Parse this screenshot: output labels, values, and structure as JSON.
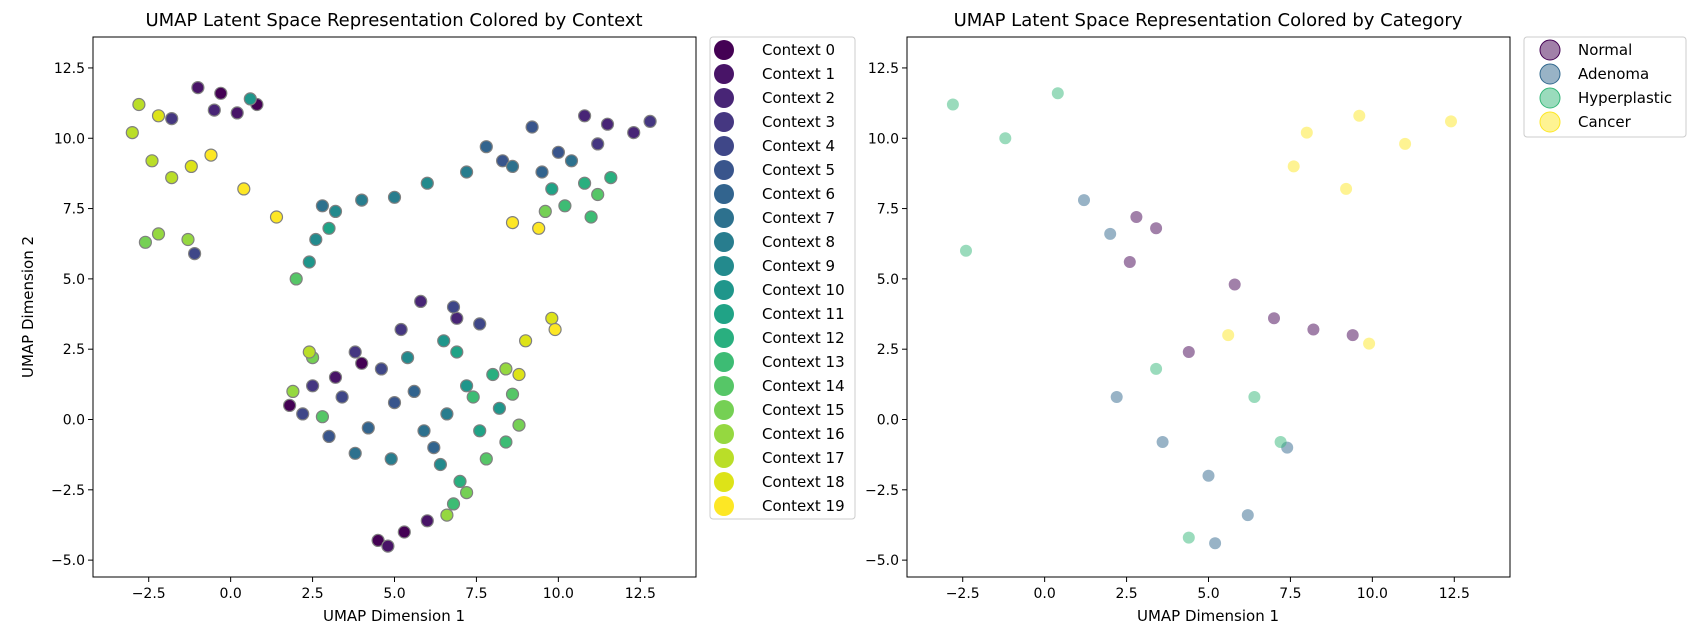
{
  "chart_data": [
    {
      "type": "scatter",
      "title": "UMAP Latent Space Representation Colored by Context",
      "xlabel": "UMAP Dimension 1",
      "ylabel": "UMAP Dimension 2",
      "xlim": [
        -4.2,
        14.2
      ],
      "ylim": [
        -5.6,
        13.6
      ],
      "xticks": [
        -2.5,
        0.0,
        2.5,
        5.0,
        7.5,
        10.0,
        12.5
      ],
      "xtick_labels": [
        "−2.5",
        "0.0",
        "2.5",
        "5.0",
        "7.5",
        "10.0",
        "12.5"
      ],
      "yticks": [
        -5.0,
        -2.5,
        0.0,
        2.5,
        5.0,
        7.5,
        10.0,
        12.5
      ],
      "ytick_labels": [
        "−5.0",
        "−2.5",
        "0.0",
        "2.5",
        "5.0",
        "7.5",
        "10.0",
        "12.5"
      ],
      "grid": false,
      "legend_placement": "outside-right",
      "marker_edge": "#808080",
      "series": [
        {
          "name": "Context 0",
          "color": "#440154",
          "points": [
            [
              -0.3,
              11.6
            ],
            [
              0.8,
              11.2
            ],
            [
              4.5,
              -4.3
            ],
            [
              5.3,
              -4.0
            ],
            [
              4.0,
              2.0
            ],
            [
              1.8,
              0.5
            ]
          ]
        },
        {
          "name": "Context 1",
          "color": "#481467",
          "points": [
            [
              -1.0,
              11.8
            ],
            [
              0.2,
              10.9
            ],
            [
              4.8,
              -4.5
            ],
            [
              6.0,
              -3.6
            ],
            [
              3.2,
              1.5
            ]
          ]
        },
        {
          "name": "Context 2",
          "color": "#482576",
          "points": [
            [
              11.5,
              10.5
            ],
            [
              12.3,
              10.2
            ],
            [
              10.8,
              10.8
            ],
            [
              5.8,
              4.2
            ],
            [
              6.9,
              3.6
            ],
            [
              -0.5,
              11.0
            ]
          ]
        },
        {
          "name": "Context 3",
          "color": "#453781",
          "points": [
            [
              12.8,
              10.6
            ],
            [
              11.2,
              9.8
            ],
            [
              2.5,
              1.2
            ],
            [
              3.8,
              2.4
            ],
            [
              5.2,
              3.2
            ],
            [
              -1.8,
              10.7
            ]
          ]
        },
        {
          "name": "Context 4",
          "color": "#3f4788",
          "points": [
            [
              2.2,
              0.2
            ],
            [
              3.4,
              0.8
            ],
            [
              4.6,
              1.8
            ],
            [
              6.8,
              4.0
            ],
            [
              7.6,
              3.4
            ],
            [
              -1.1,
              5.9
            ]
          ]
        },
        {
          "name": "Context 5",
          "color": "#39558c",
          "points": [
            [
              9.2,
              10.4
            ],
            [
              10.0,
              9.5
            ],
            [
              8.3,
              9.2
            ],
            [
              3.0,
              -0.6
            ],
            [
              5.0,
              0.6
            ]
          ]
        },
        {
          "name": "Context 6",
          "color": "#32648e",
          "points": [
            [
              7.8,
              9.7
            ],
            [
              9.5,
              8.8
            ],
            [
              4.2,
              -0.3
            ],
            [
              5.6,
              1.0
            ],
            [
              6.2,
              -1.0
            ]
          ]
        },
        {
          "name": "Context 7",
          "color": "#2d718e",
          "points": [
            [
              8.6,
              9.0
            ],
            [
              10.4,
              9.2
            ],
            [
              3.8,
              -1.2
            ],
            [
              5.9,
              -0.4
            ],
            [
              2.8,
              7.6
            ]
          ]
        },
        {
          "name": "Context 8",
          "color": "#287d8e",
          "points": [
            [
              7.2,
              8.8
            ],
            [
              4.0,
              7.8
            ],
            [
              5.0,
              7.9
            ],
            [
              6.6,
              0.2
            ],
            [
              4.9,
              -1.4
            ]
          ]
        },
        {
          "name": "Context 9",
          "color": "#238a8d",
          "points": [
            [
              6.0,
              8.4
            ],
            [
              3.2,
              7.4
            ],
            [
              6.4,
              -1.6
            ],
            [
              5.4,
              2.2
            ],
            [
              2.6,
              6.4
            ]
          ]
        },
        {
          "name": "Context 10",
          "color": "#1f968b",
          "points": [
            [
              0.6,
              11.4
            ],
            [
              7.2,
              1.2
            ],
            [
              8.2,
              0.4
            ],
            [
              6.5,
              2.8
            ],
            [
              2.4,
              5.6
            ]
          ]
        },
        {
          "name": "Context 11",
          "color": "#20a386",
          "points": [
            [
              9.8,
              8.2
            ],
            [
              7.6,
              -0.4
            ],
            [
              6.9,
              2.4
            ],
            [
              3.0,
              6.8
            ]
          ]
        },
        {
          "name": "Context 12",
          "color": "#29af7f",
          "points": [
            [
              10.8,
              8.4
            ],
            [
              11.6,
              8.6
            ],
            [
              8.0,
              1.6
            ],
            [
              7.0,
              -2.2
            ]
          ]
        },
        {
          "name": "Context 13",
          "color": "#3dbc74",
          "points": [
            [
              10.2,
              7.6
            ],
            [
              11.0,
              7.2
            ],
            [
              7.4,
              0.8
            ],
            [
              6.8,
              -3.0
            ],
            [
              8.4,
              -0.8
            ]
          ]
        },
        {
          "name": "Context 14",
          "color": "#56c667",
          "points": [
            [
              11.2,
              8.0
            ],
            [
              8.6,
              0.9
            ],
            [
              7.8,
              -1.4
            ],
            [
              2.8,
              0.1
            ],
            [
              2.0,
              5.0
            ]
          ]
        },
        {
          "name": "Context 15",
          "color": "#75d054",
          "points": [
            [
              9.6,
              7.4
            ],
            [
              8.8,
              -0.2
            ],
            [
              7.2,
              -2.6
            ],
            [
              2.5,
              2.2
            ],
            [
              -2.6,
              6.3
            ]
          ]
        },
        {
          "name": "Context 16",
          "color": "#95d840",
          "points": [
            [
              8.4,
              1.8
            ],
            [
              6.6,
              -3.4
            ],
            [
              1.9,
              1.0
            ],
            [
              -1.3,
              6.4
            ],
            [
              -2.2,
              6.6
            ]
          ]
        },
        {
          "name": "Context 17",
          "color": "#bade28",
          "points": [
            [
              -3.0,
              10.2
            ],
            [
              -2.4,
              9.2
            ],
            [
              -1.8,
              8.6
            ],
            [
              2.4,
              2.4
            ],
            [
              -2.8,
              11.2
            ]
          ]
        },
        {
          "name": "Context 18",
          "color": "#dde318",
          "points": [
            [
              -2.2,
              10.8
            ],
            [
              -1.2,
              9.0
            ],
            [
              9.0,
              2.8
            ],
            [
              9.8,
              3.6
            ],
            [
              8.8,
              1.6
            ]
          ]
        },
        {
          "name": "Context 19",
          "color": "#fde725",
          "points": [
            [
              -0.6,
              9.4
            ],
            [
              0.4,
              8.2
            ],
            [
              1.4,
              7.2
            ],
            [
              8.6,
              7.0
            ],
            [
              9.4,
              6.8
            ],
            [
              9.9,
              3.2
            ]
          ]
        }
      ]
    },
    {
      "type": "scatter",
      "title": "UMAP Latent Space Representation Colored by Category",
      "xlabel": "UMAP Dimension 1",
      "ylabel": "",
      "xlim": [
        -4.2,
        14.2
      ],
      "ylim": [
        -5.6,
        13.6
      ],
      "xticks": [
        -2.5,
        0.0,
        2.5,
        5.0,
        7.5,
        10.0,
        12.5
      ],
      "xtick_labels": [
        "−2.5",
        "0.0",
        "2.5",
        "5.0",
        "7.5",
        "10.0",
        "12.5"
      ],
      "yticks": [
        -5.0,
        -2.5,
        0.0,
        2.5,
        5.0,
        7.5,
        10.0,
        12.5
      ],
      "ytick_labels": [
        "−5.0",
        "−2.5",
        "0.0",
        "2.5",
        "5.0",
        "7.5",
        "10.0",
        "12.5"
      ],
      "grid": false,
      "legend_placement": "outside-right",
      "marker_alpha": 0.5,
      "series": [
        {
          "name": "Normal",
          "color": "#440154",
          "points": [
            [
              2.8,
              7.2
            ],
            [
              3.4,
              6.8
            ],
            [
              2.6,
              5.6
            ],
            [
              5.8,
              4.8
            ],
            [
              7.0,
              3.6
            ],
            [
              8.2,
              3.2
            ],
            [
              9.4,
              3.0
            ],
            [
              4.4,
              2.4
            ]
          ]
        },
        {
          "name": "Adenoma",
          "color": "#31688e",
          "points": [
            [
              1.2,
              7.8
            ],
            [
              2.0,
              6.6
            ],
            [
              2.2,
              0.8
            ],
            [
              3.6,
              -0.8
            ],
            [
              5.0,
              -2.0
            ],
            [
              6.2,
              -3.4
            ],
            [
              5.2,
              -4.4
            ],
            [
              7.4,
              -1.0
            ]
          ]
        },
        {
          "name": "Hyperplastic",
          "color": "#35b779",
          "points": [
            [
              -2.8,
              11.2
            ],
            [
              -1.2,
              10.0
            ],
            [
              0.4,
              11.6
            ],
            [
              -2.4,
              6.0
            ],
            [
              3.4,
              1.8
            ],
            [
              6.4,
              0.8
            ],
            [
              7.2,
              -0.8
            ],
            [
              4.4,
              -4.2
            ]
          ]
        },
        {
          "name": "Cancer",
          "color": "#fde725",
          "points": [
            [
              8.0,
              10.2
            ],
            [
              9.6,
              10.8
            ],
            [
              11.0,
              9.8
            ],
            [
              12.4,
              10.6
            ],
            [
              9.2,
              8.2
            ],
            [
              7.6,
              9.0
            ],
            [
              5.6,
              3.0
            ],
            [
              9.9,
              2.7
            ]
          ]
        }
      ]
    }
  ]
}
